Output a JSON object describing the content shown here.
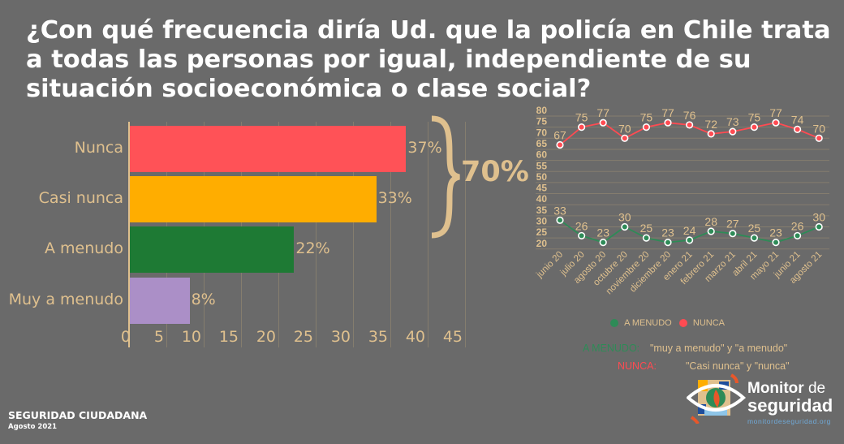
{
  "title": "¿Con qué frecuencia diría Ud. que la policía en Chile trata a todas las personas por igual, independiente de su situación socioeconómica o clase social?",
  "chart_data": [
    {
      "type": "bar",
      "orientation": "horizontal",
      "categories": [
        "Nunca",
        "Casi nunca",
        "A menudo",
        "Muy a menudo"
      ],
      "values": [
        37,
        33,
        22,
        8
      ],
      "value_labels": [
        "37%",
        "33%",
        "22%",
        "8%"
      ],
      "colors": [
        "#ff5257",
        "#ffad00",
        "#1e7a34",
        "#ab8fc7"
      ],
      "xlim": [
        0,
        45
      ],
      "xticks": [
        "0",
        "5",
        "10",
        "15",
        "20",
        "25",
        "30",
        "35",
        "40",
        "45"
      ],
      "grid": true,
      "bracket_label": "70%"
    },
    {
      "type": "line",
      "x": [
        "junio 20",
        "julio 20",
        "agosto 20",
        "octubre 20",
        "noviembre 20",
        "diciembre 20",
        "enero 21",
        "febrero 21",
        "marzo 21",
        "abril 21",
        "mayo 21",
        "junio 21",
        "agosto 21"
      ],
      "series": [
        {
          "name": "NUNCA",
          "color": "#ff4b52",
          "values": [
            67,
            75,
            77,
            70,
            75,
            77,
            76,
            72,
            73,
            75,
            77,
            74,
            70
          ]
        },
        {
          "name": "A MENUDO",
          "color": "#2e8b57",
          "values": [
            33,
            26,
            23,
            30,
            25,
            23,
            24,
            28,
            27,
            25,
            23,
            26,
            30
          ]
        }
      ],
      "ylim": [
        20,
        80
      ],
      "yticks": [
        "80",
        "75",
        "70",
        "65",
        "60",
        "55",
        "50",
        "45",
        "40",
        "35",
        "30",
        "25",
        "20"
      ],
      "grid": true,
      "legend_placement": "bottom",
      "legend": [
        "A MENUDO",
        "NUNCA"
      ]
    }
  ],
  "notes": [
    {
      "key": "A MENUDO:",
      "text": "\"muy a menudo\" y \"a menudo\"",
      "color": "#2e8b57"
    },
    {
      "key": "NUNCA:",
      "text": "\"Casi nunca\" y \"nunca\"",
      "color": "#ff4b52"
    }
  ],
  "footer": {
    "section": "SEGURIDAD CIUDADANA",
    "date": "Agosto 2021"
  },
  "logo": {
    "line1a": "Monitor",
    "line1b": "de",
    "line2": "seguridad",
    "url": "monitordeseguridad.org"
  },
  "colors": {
    "background": "#6a6a6a",
    "accent_text": "#dfc08e"
  }
}
